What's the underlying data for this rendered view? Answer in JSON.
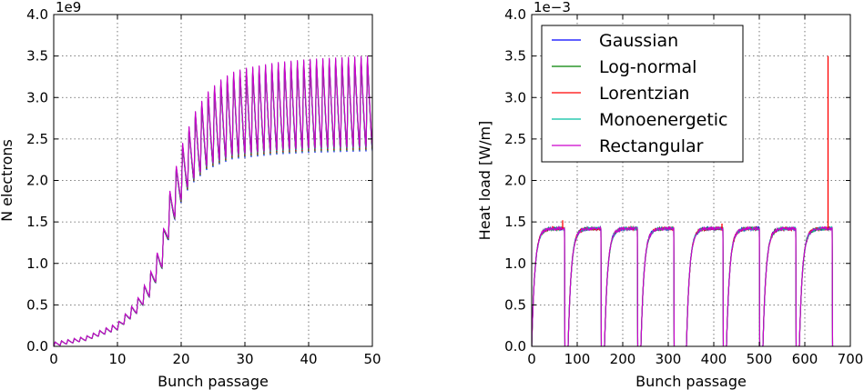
{
  "chart_data": [
    {
      "type": "line",
      "title": "",
      "xlabel": "Bunch passage",
      "ylabel": "N electrons",
      "offset_text": "1e9",
      "xlim": [
        0,
        50
      ],
      "ylim": [
        0,
        4.0
      ],
      "xticks": [
        0,
        10,
        20,
        30,
        40,
        50
      ],
      "yticks": [
        0.0,
        0.5,
        1.0,
        1.5,
        2.0,
        2.5,
        3.0,
        3.5,
        4.0
      ],
      "ytick_labels": [
        "0.0",
        "0.5",
        "1.0",
        "1.5",
        "2.0",
        "2.5",
        "3.0",
        "3.5",
        "4.0"
      ],
      "grid": true,
      "description_of_shape": "oscillating buildup, period 1 bunch",
      "envelope_max": {
        "x": [
          0,
          5,
          10,
          13,
          15,
          17,
          18,
          19,
          20,
          21,
          22,
          24,
          26,
          28,
          30,
          35,
          40,
          45,
          50
        ],
        "y": [
          0.05,
          0.12,
          0.28,
          0.55,
          0.85,
          1.3,
          1.8,
          2.1,
          2.4,
          2.6,
          2.8,
          3.05,
          3.2,
          3.3,
          3.35,
          3.42,
          3.46,
          3.48,
          3.5
        ]
      },
      "envelope_min": {
        "x": [
          0,
          5,
          10,
          13,
          15,
          17,
          18,
          19,
          20,
          21,
          22,
          24,
          26,
          28,
          30,
          35,
          40,
          45,
          50
        ],
        "y": [
          0.0,
          0.07,
          0.2,
          0.4,
          0.6,
          0.95,
          1.3,
          1.55,
          1.75,
          1.9,
          2.0,
          2.15,
          2.22,
          2.28,
          2.3,
          2.34,
          2.36,
          2.37,
          2.38
        ]
      },
      "series": [
        {
          "name": "Gaussian",
          "color": "#0000ff"
        },
        {
          "name": "Log-normal",
          "color": "#008000"
        },
        {
          "name": "Lorentzian",
          "color": "#ff0000"
        },
        {
          "name": "Monoenergetic",
          "color": "#00bfa0"
        },
        {
          "name": "Rectangular",
          "color": "#cc00cc"
        }
      ]
    },
    {
      "type": "line",
      "title": "",
      "xlabel": "Bunch passage",
      "ylabel": "Heat load [W/m]",
      "offset_text": "1e−3",
      "xlim": [
        0,
        700
      ],
      "ylim": [
        0,
        4.0
      ],
      "xticks": [
        0,
        100,
        200,
        300,
        400,
        500,
        600,
        700
      ],
      "yticks": [
        0.0,
        0.5,
        1.0,
        1.5,
        2.0,
        2.5,
        3.0,
        3.5,
        4.0
      ],
      "ytick_labels": [
        "0.0",
        "0.5",
        "1.0",
        "1.5",
        "2.0",
        "2.5",
        "3.0",
        "3.5",
        "4.0"
      ],
      "grid": true,
      "legend_position": "upper-left",
      "trains": [
        {
          "start": 0,
          "end": 72
        },
        {
          "start": 80,
          "end": 152
        },
        {
          "start": 160,
          "end": 232
        },
        {
          "start": 240,
          "end": 312
        },
        {
          "start": 340,
          "end": 420
        },
        {
          "start": 428,
          "end": 500
        },
        {
          "start": 508,
          "end": 580
        },
        {
          "start": 588,
          "end": 660
        }
      ],
      "plateau": 1.42,
      "spikes": [
        {
          "x": 68,
          "y": 1.52,
          "series": "Lorentzian"
        },
        {
          "x": 418,
          "y": 1.48,
          "series": "Lorentzian"
        },
        {
          "x": 651,
          "y": 3.5,
          "series": "Lorentzian"
        }
      ],
      "series": [
        {
          "name": "Gaussian",
          "color": "#0000ff"
        },
        {
          "name": "Log-normal",
          "color": "#008000"
        },
        {
          "name": "Lorentzian",
          "color": "#ff0000"
        },
        {
          "name": "Monoenergetic",
          "color": "#00bfa0"
        },
        {
          "name": "Rectangular",
          "color": "#cc00cc"
        }
      ]
    }
  ]
}
